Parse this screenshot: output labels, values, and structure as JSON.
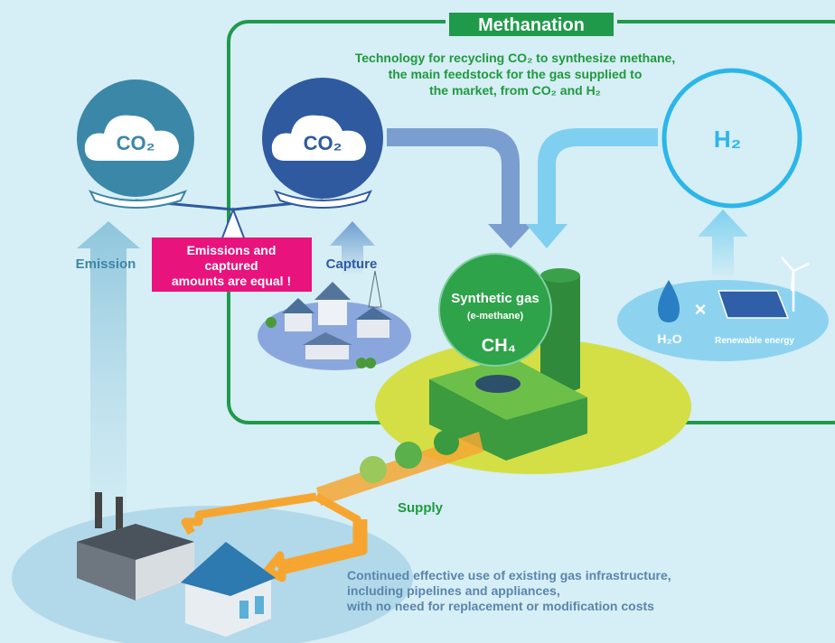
{
  "header": {
    "title": "Methanation",
    "description": [
      "Technology for recycling CO₂ to synthesize methane,",
      "the main feedstock for the gas supplied to",
      "the market, from CO₂ and H₂"
    ]
  },
  "nodes": [
    {
      "label": "CO₂"
    },
    {
      "label": "CO₂"
    },
    {
      "label": "H₂"
    }
  ],
  "arrows": {
    "emission": "Emission",
    "capture": "Capture",
    "supply": "Supply"
  },
  "balance": {
    "note": [
      "Emissions and",
      "captured",
      "amounts are equal !"
    ]
  },
  "synthetic_gas": {
    "title": "Synthetic gas",
    "subtitle": "(e-methane)",
    "formula": "CH₄"
  },
  "hydrogen_source": {
    "water": "H₂O",
    "energy": "Renewable energy"
  },
  "footer": {
    "lines": [
      "Continued effective use of existing gas infrastructure,",
      "including pipelines and appliances,",
      "with no need for replacement or modification costs"
    ]
  }
}
